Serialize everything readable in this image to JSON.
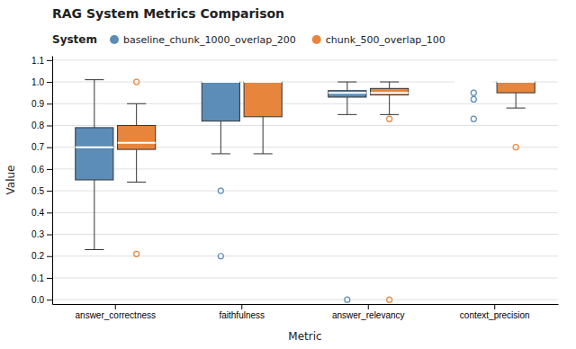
{
  "chart_data": {
    "type": "box",
    "title": "RAG System Metrics Comparison",
    "xlabel": "Metric",
    "ylabel": "Value",
    "legend_title": "System",
    "legend": "top",
    "grid": true,
    "categories": [
      "answer_correctness",
      "faithfulness",
      "answer_relevancy",
      "context_precision"
    ],
    "ylim": [
      -0.02,
      1.12
    ],
    "yticks": [
      {
        "value": 0,
        "label": "0.0"
      },
      0.1,
      0.2,
      0.3,
      0.4,
      0.5,
      0.6,
      0.7,
      0.8,
      0.9,
      {
        "value": 1,
        "label": "1.0"
      },
      1.1
    ],
    "series": [
      {
        "name": "baseline_chunk_1000_overlap_200",
        "color": "#5b8db8",
        "values": [
          {
            "whislo": 0.23,
            "q1": 0.55,
            "med": 0.7,
            "q3": 0.79,
            "whishi": 1.01,
            "fliers": []
          },
          {
            "whislo": 0.67,
            "q1": 0.82,
            "med": 1.0,
            "q3": 1.0,
            "whishi": 1.0,
            "fliers": [
              0.2,
              0.5
            ]
          },
          {
            "whislo": 0.85,
            "q1": 0.93,
            "med": 0.95,
            "q3": 0.96,
            "whishi": 1.0,
            "fliers": [
              0.0
            ]
          },
          {
            "whislo": 1.0,
            "q1": 1.0,
            "med": 1.0,
            "q3": 1.0,
            "whishi": 1.0,
            "fliers": [
              0.83,
              0.92,
              0.95
            ]
          }
        ]
      },
      {
        "name": "chunk_500_overlap_100",
        "color": "#e8853d",
        "values": [
          {
            "whislo": 0.54,
            "q1": 0.69,
            "med": 0.72,
            "q3": 0.8,
            "whishi": 0.9,
            "fliers": [
              0.21,
              1.0
            ]
          },
          {
            "whislo": 0.67,
            "q1": 0.84,
            "med": 1.0,
            "q3": 1.0,
            "whishi": 1.0,
            "fliers": []
          },
          {
            "whislo": 0.85,
            "q1": 0.94,
            "med": 0.95,
            "q3": 0.97,
            "whishi": 1.0,
            "fliers": [
              0.0,
              0.83
            ]
          },
          {
            "whislo": 0.88,
            "q1": 0.95,
            "med": 1.0,
            "q3": 1.0,
            "whishi": 1.0,
            "fliers": [
              0.7
            ]
          }
        ]
      }
    ]
  }
}
